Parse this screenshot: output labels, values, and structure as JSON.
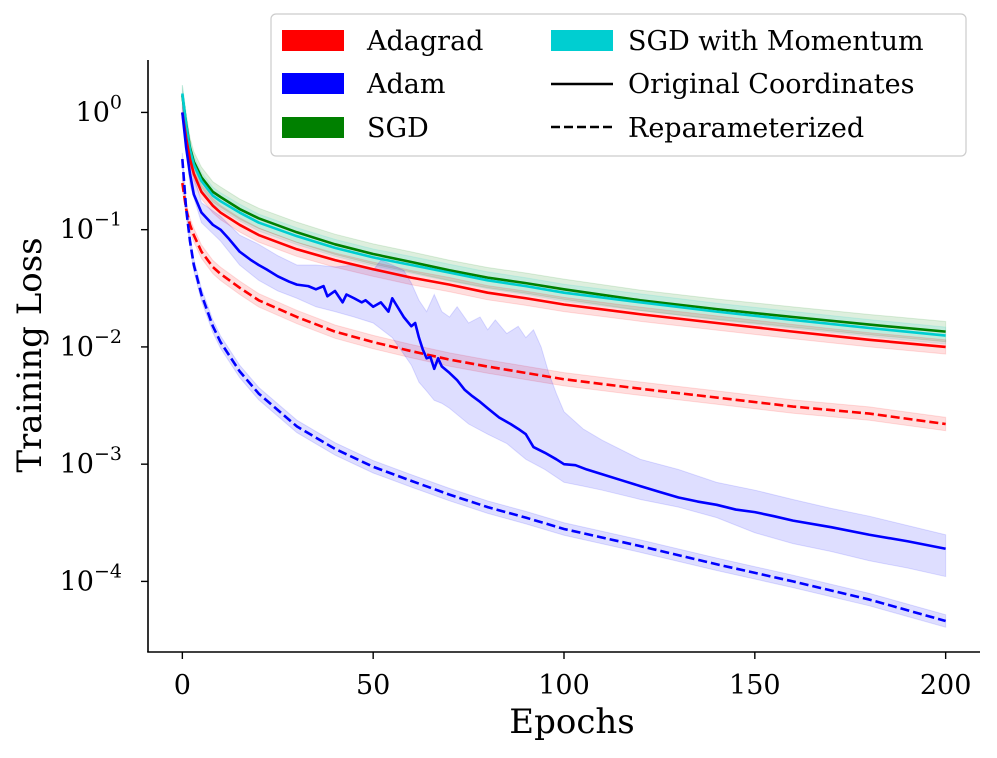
{
  "chart_data": {
    "type": "line",
    "title": "",
    "xlabel": "Epochs",
    "ylabel": "Training Loss",
    "xscale": "linear",
    "yscale": "log",
    "xlim": [
      -9,
      209
    ],
    "ylim": [
      2.5e-05,
      2.8
    ],
    "xticks": [
      0,
      50,
      100,
      150,
      200
    ],
    "xtick_labels": [
      "0",
      "50",
      "100",
      "150",
      "200"
    ],
    "yticks": [
      {
        "value": 1,
        "base": "10",
        "exp": "0"
      },
      {
        "value": 0.1,
        "base": "10",
        "exp": "−1"
      },
      {
        "value": 0.01,
        "base": "10",
        "exp": "−2"
      },
      {
        "value": 0.001,
        "base": "10",
        "exp": "−3"
      },
      {
        "value": 0.0001,
        "base": "10",
        "exp": "−4"
      }
    ],
    "legend": {
      "placement": "top-right",
      "entries": [
        {
          "label": "Adagrad",
          "kind": "patch",
          "color": "#ff0000"
        },
        {
          "label": "Adam",
          "kind": "patch",
          "color": "#0000ff"
        },
        {
          "label": "SGD",
          "kind": "patch",
          "color": "#008000"
        },
        {
          "label": "SGD with Momentum",
          "kind": "patch",
          "color": "#00ced1"
        },
        {
          "label": "Original Coordinates",
          "kind": "line",
          "color": "#000000",
          "dash": "solid"
        },
        {
          "label": "Reparameterized",
          "kind": "line",
          "color": "#000000",
          "dash": "dashed"
        }
      ]
    },
    "series": [
      {
        "name": "SGD",
        "color": "#008000",
        "style": "solid",
        "band_ratio": 1.22,
        "points": [
          [
            0,
            1.4
          ],
          [
            1,
            0.8
          ],
          [
            2,
            0.5
          ],
          [
            3,
            0.38
          ],
          [
            5,
            0.28
          ],
          [
            8,
            0.21
          ],
          [
            10,
            0.19
          ],
          [
            15,
            0.15
          ],
          [
            20,
            0.125
          ],
          [
            30,
            0.095
          ],
          [
            40,
            0.075
          ],
          [
            50,
            0.062
          ],
          [
            60,
            0.053
          ],
          [
            70,
            0.045
          ],
          [
            80,
            0.039
          ],
          [
            90,
            0.035
          ],
          [
            100,
            0.031
          ],
          [
            120,
            0.025
          ],
          [
            140,
            0.021
          ],
          [
            160,
            0.018
          ],
          [
            180,
            0.0155
          ],
          [
            200,
            0.0135
          ]
        ]
      },
      {
        "name": "SGD with Momentum",
        "color": "#00ced1",
        "style": "solid",
        "band_ratio": 1.18,
        "points": [
          [
            0,
            1.45
          ],
          [
            1,
            0.78
          ],
          [
            2,
            0.48
          ],
          [
            3,
            0.36
          ],
          [
            5,
            0.26
          ],
          [
            8,
            0.195
          ],
          [
            10,
            0.175
          ],
          [
            15,
            0.14
          ],
          [
            20,
            0.115
          ],
          [
            30,
            0.088
          ],
          [
            40,
            0.07
          ],
          [
            50,
            0.058
          ],
          [
            60,
            0.05
          ],
          [
            70,
            0.043
          ],
          [
            80,
            0.037
          ],
          [
            90,
            0.033
          ],
          [
            100,
            0.029
          ],
          [
            120,
            0.024
          ],
          [
            140,
            0.02
          ],
          [
            160,
            0.017
          ],
          [
            180,
            0.0145
          ],
          [
            200,
            0.0125
          ]
        ]
      },
      {
        "name": "Adagrad",
        "color": "#ff0000",
        "style": "solid",
        "band_ratio": 1.15,
        "points": [
          [
            0,
            1.0
          ],
          [
            1,
            0.6
          ],
          [
            2,
            0.4
          ],
          [
            3,
            0.3
          ],
          [
            5,
            0.21
          ],
          [
            8,
            0.16
          ],
          [
            10,
            0.14
          ],
          [
            15,
            0.11
          ],
          [
            20,
            0.09
          ],
          [
            30,
            0.068
          ],
          [
            40,
            0.055
          ],
          [
            50,
            0.046
          ],
          [
            60,
            0.039
          ],
          [
            70,
            0.034
          ],
          [
            80,
            0.029
          ],
          [
            90,
            0.026
          ],
          [
            100,
            0.023
          ],
          [
            120,
            0.019
          ],
          [
            140,
            0.016
          ],
          [
            160,
            0.0135
          ],
          [
            180,
            0.0115
          ],
          [
            200,
            0.01
          ]
        ]
      },
      {
        "name": "Adagrad (reparameterized)",
        "color": "#ff0000",
        "style": "dashed",
        "band_ratio": 1.14,
        "points": [
          [
            0,
            0.25
          ],
          [
            1,
            0.15
          ],
          [
            2,
            0.11
          ],
          [
            3,
            0.09
          ],
          [
            5,
            0.065
          ],
          [
            8,
            0.048
          ],
          [
            10,
            0.042
          ],
          [
            15,
            0.032
          ],
          [
            20,
            0.025
          ],
          [
            30,
            0.018
          ],
          [
            40,
            0.0135
          ],
          [
            50,
            0.011
          ],
          [
            60,
            0.0092
          ],
          [
            70,
            0.0078
          ],
          [
            80,
            0.0068
          ],
          [
            90,
            0.006
          ],
          [
            100,
            0.0053
          ],
          [
            120,
            0.0044
          ],
          [
            140,
            0.0037
          ],
          [
            160,
            0.0031
          ],
          [
            180,
            0.0027
          ],
          [
            200,
            0.0022
          ]
        ]
      },
      {
        "name": "Adam",
        "color": "#0000ff",
        "style": "solid",
        "points": [
          [
            0,
            1.0
          ],
          [
            1,
            0.5
          ],
          [
            2,
            0.3
          ],
          [
            3,
            0.2
          ],
          [
            5,
            0.14
          ],
          [
            8,
            0.11
          ],
          [
            10,
            0.1
          ],
          [
            12,
            0.085
          ],
          [
            15,
            0.065
          ],
          [
            18,
            0.055
          ],
          [
            20,
            0.05
          ],
          [
            22,
            0.046
          ],
          [
            25,
            0.04
          ],
          [
            28,
            0.036
          ],
          [
            30,
            0.034
          ],
          [
            33,
            0.033
          ],
          [
            35,
            0.031
          ],
          [
            37,
            0.033
          ],
          [
            38,
            0.027
          ],
          [
            40,
            0.03
          ],
          [
            42,
            0.024
          ],
          [
            43,
            0.028
          ],
          [
            45,
            0.026
          ],
          [
            47,
            0.024
          ],
          [
            48,
            0.025
          ],
          [
            50,
            0.022
          ],
          [
            52,
            0.024
          ],
          [
            54,
            0.02
          ],
          [
            55,
            0.026
          ],
          [
            56,
            0.023
          ],
          [
            58,
            0.018
          ],
          [
            60,
            0.015
          ],
          [
            61,
            0.016
          ],
          [
            62,
            0.012
          ],
          [
            63,
            0.0095
          ],
          [
            64,
            0.008
          ],
          [
            65,
            0.0082
          ],
          [
            66,
            0.0065
          ],
          [
            67,
            0.008
          ],
          [
            68,
            0.0068
          ],
          [
            70,
            0.006
          ],
          [
            72,
            0.0052
          ],
          [
            74,
            0.0043
          ],
          [
            76,
            0.0038
          ],
          [
            78,
            0.0034
          ],
          [
            80,
            0.003
          ],
          [
            83,
            0.0025
          ],
          [
            86,
            0.0022
          ],
          [
            88,
            0.002
          ],
          [
            90,
            0.0018
          ],
          [
            92,
            0.0014
          ],
          [
            95,
            0.00125
          ],
          [
            98,
            0.0011
          ],
          [
            100,
            0.001
          ],
          [
            103,
            0.00098
          ],
          [
            106,
            0.0009
          ],
          [
            110,
            0.00082
          ],
          [
            115,
            0.00073
          ],
          [
            120,
            0.00065
          ],
          [
            125,
            0.00058
          ],
          [
            130,
            0.00052
          ],
          [
            135,
            0.00048
          ],
          [
            140,
            0.00045
          ],
          [
            145,
            0.00041
          ],
          [
            150,
            0.00039
          ],
          [
            155,
            0.00036
          ],
          [
            160,
            0.00033
          ],
          [
            170,
            0.00029
          ],
          [
            180,
            0.00025
          ],
          [
            190,
            0.00022
          ],
          [
            200,
            0.00019
          ]
        ],
        "band_upper": [
          [
            0,
            1.2
          ],
          [
            2,
            0.38
          ],
          [
            5,
            0.17
          ],
          [
            10,
            0.13
          ],
          [
            15,
            0.09
          ],
          [
            20,
            0.075
          ],
          [
            25,
            0.06
          ],
          [
            30,
            0.05
          ],
          [
            35,
            0.05
          ],
          [
            40,
            0.048
          ],
          [
            45,
            0.05
          ],
          [
            50,
            0.045
          ],
          [
            52,
            0.055
          ],
          [
            55,
            0.05
          ],
          [
            58,
            0.045
          ],
          [
            60,
            0.035
          ],
          [
            62,
            0.025
          ],
          [
            64,
            0.02
          ],
          [
            66,
            0.028
          ],
          [
            68,
            0.02
          ],
          [
            70,
            0.018
          ],
          [
            72,
            0.022
          ],
          [
            75,
            0.016
          ],
          [
            78,
            0.018
          ],
          [
            80,
            0.014
          ],
          [
            82,
            0.017
          ],
          [
            85,
            0.013
          ],
          [
            88,
            0.015
          ],
          [
            90,
            0.012
          ],
          [
            92,
            0.014
          ],
          [
            94,
            0.01
          ],
          [
            96,
            0.006
          ],
          [
            98,
            0.004
          ],
          [
            100,
            0.0028
          ],
          [
            105,
            0.002
          ],
          [
            110,
            0.0016
          ],
          [
            120,
            0.0011
          ],
          [
            130,
            0.0009
          ],
          [
            140,
            0.0007
          ],
          [
            150,
            0.0006
          ],
          [
            160,
            0.0005
          ],
          [
            170,
            0.00042
          ],
          [
            180,
            0.00036
          ],
          [
            190,
            0.0003
          ],
          [
            200,
            0.00025
          ]
        ],
        "band_lower": [
          [
            0,
            0.85
          ],
          [
            2,
            0.24
          ],
          [
            5,
            0.115
          ],
          [
            10,
            0.08
          ],
          [
            15,
            0.05
          ],
          [
            20,
            0.037
          ],
          [
            25,
            0.03
          ],
          [
            30,
            0.026
          ],
          [
            35,
            0.022
          ],
          [
            40,
            0.02
          ],
          [
            45,
            0.018
          ],
          [
            50,
            0.016
          ],
          [
            55,
            0.012
          ],
          [
            60,
            0.007
          ],
          [
            62,
            0.005
          ],
          [
            64,
            0.0042
          ],
          [
            66,
            0.0035
          ],
          [
            68,
            0.0033
          ],
          [
            70,
            0.003
          ],
          [
            75,
            0.0022
          ],
          [
            80,
            0.0018
          ],
          [
            85,
            0.0015
          ],
          [
            90,
            0.0011
          ],
          [
            95,
            0.0009
          ],
          [
            100,
            0.0007
          ],
          [
            105,
            0.00065
          ],
          [
            110,
            0.0006
          ],
          [
            120,
            0.0005
          ],
          [
            130,
            0.00043
          ],
          [
            140,
            0.00035
          ],
          [
            150,
            0.00026
          ],
          [
            160,
            0.00021
          ],
          [
            170,
            0.00018
          ],
          [
            180,
            0.00015
          ],
          [
            190,
            0.00013
          ],
          [
            200,
            0.00011
          ]
        ]
      },
      {
        "name": "Adam (reparameterized)",
        "color": "#0000ff",
        "style": "dashed",
        "band_ratio": 1.13,
        "points": [
          [
            0,
            0.4
          ],
          [
            1,
            0.15
          ],
          [
            2,
            0.08
          ],
          [
            3,
            0.05
          ],
          [
            5,
            0.028
          ],
          [
            8,
            0.015
          ],
          [
            10,
            0.011
          ],
          [
            15,
            0.0062
          ],
          [
            20,
            0.004
          ],
          [
            30,
            0.0021
          ],
          [
            40,
            0.00135
          ],
          [
            50,
            0.00095
          ],
          [
            60,
            0.00072
          ],
          [
            70,
            0.00055
          ],
          [
            80,
            0.00043
          ],
          [
            90,
            0.00035
          ],
          [
            100,
            0.00028
          ],
          [
            120,
            0.0002
          ],
          [
            140,
            0.00014
          ],
          [
            160,
            0.0001
          ],
          [
            180,
            7e-05
          ],
          [
            200,
            4.6e-05
          ]
        ]
      }
    ]
  }
}
